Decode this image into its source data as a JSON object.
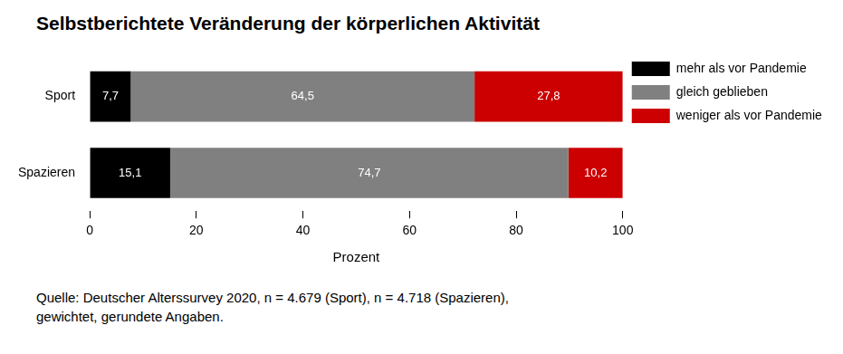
{
  "chart_data": {
    "type": "bar",
    "title": "Selbstberichtete Veränderung der körperlichen Aktivität",
    "x_label": "Prozent",
    "annotations": [
      "Quelle: Deutscher Alterssurvey 2020, n = 4.679 (Sport), n = 4.718 (Spazieren),",
      "gewichtet, gerundete Angaben."
    ],
    "categories": [
      "Sport",
      "Spazieren"
    ],
    "series": [
      {
        "name": "mehr als vor Pandemie",
        "color": "#000000",
        "values": [
          7.7,
          15.1
        ],
        "value_labels": [
          "7,7",
          "15,1"
        ]
      },
      {
        "name": "gleich geblieben",
        "color": "#808080",
        "values": [
          64.5,
          74.7
        ],
        "value_labels": [
          "64,5",
          "74,7"
        ]
      },
      {
        "name": "weniger als vor Pandemie",
        "color": "#cc0000",
        "values": [
          27.8,
          10.2
        ],
        "value_labels": [
          "27,8",
          "10,2"
        ]
      }
    ],
    "orientation": "horizontal",
    "stacked": true,
    "data_labels": true,
    "xlim": [
      0,
      100
    ],
    "xticks": [
      0,
      20,
      40,
      60,
      80,
      100
    ],
    "grid": false,
    "legend": "right"
  }
}
